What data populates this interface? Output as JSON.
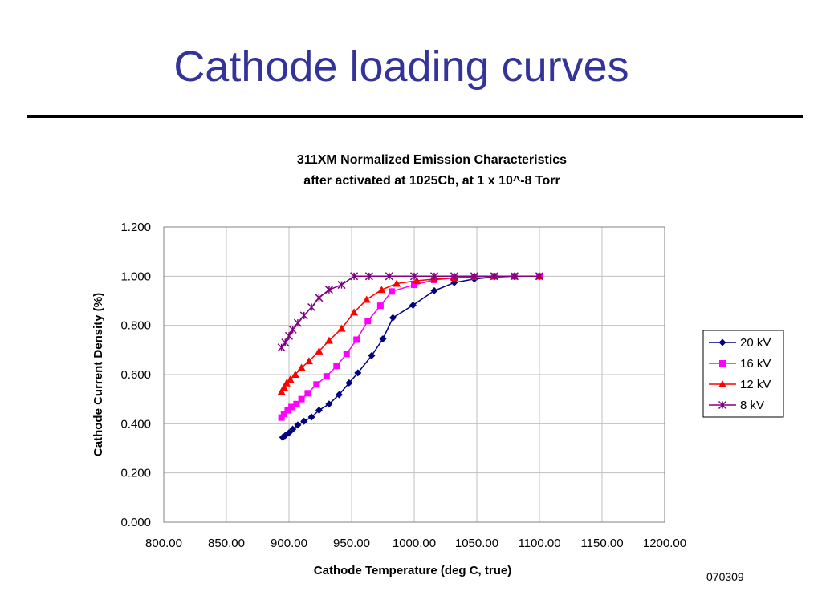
{
  "slide": {
    "title": "Cathode loading curves",
    "footer_code": "070309"
  },
  "colors": {
    "title": "#333399",
    "plot_border": "#808080",
    "grid": "#c0c0c0"
  },
  "chart_data": {
    "type": "line",
    "title": "311XM Normalized Emission Characteristics",
    "subtitle": "after activated at 1025Cb, at 1 x 10^-8 Torr",
    "xlabel": "Cathode Temperature (deg C, true)",
    "ylabel": "Cathode Current Density (%)",
    "xlim": [
      800,
      1200
    ],
    "ylim": [
      0,
      1.2
    ],
    "x_ticks": [
      "800.00",
      "850.00",
      "900.00",
      "950.00",
      "1000.00",
      "1050.00",
      "1100.00",
      "1150.00",
      "1200.00"
    ],
    "y_ticks": [
      "0.000",
      "0.200",
      "0.400",
      "0.600",
      "0.800",
      "1.000",
      "1.200"
    ],
    "grid": true,
    "legend_position": "right",
    "series": [
      {
        "name": "20 kV",
        "color": "#000080",
        "marker": "diamond",
        "x": [
          895,
          897,
          900,
          903,
          907,
          912,
          918,
          924,
          932,
          940,
          948,
          955,
          966,
          975,
          983,
          999,
          1016,
          1032,
          1048,
          1064,
          1080,
          1100
        ],
        "y": [
          0.345,
          0.352,
          0.363,
          0.378,
          0.395,
          0.41,
          0.427,
          0.455,
          0.48,
          0.518,
          0.566,
          0.607,
          0.677,
          0.745,
          0.831,
          0.882,
          0.941,
          0.974,
          0.989,
          0.997,
          1.0,
          1.0
        ]
      },
      {
        "name": "16 kV",
        "color": "#ff00ff",
        "marker": "square",
        "x": [
          894,
          896,
          899,
          902,
          906,
          910,
          915,
          922,
          930,
          938,
          946,
          954,
          963,
          973,
          982,
          1000,
          1016,
          1032,
          1048,
          1064,
          1080,
          1100
        ],
        "y": [
          0.425,
          0.44,
          0.455,
          0.468,
          0.48,
          0.5,
          0.524,
          0.56,
          0.593,
          0.635,
          0.684,
          0.742,
          0.818,
          0.88,
          0.938,
          0.965,
          0.985,
          0.993,
          0.998,
          1.0,
          1.0,
          1.0
        ]
      },
      {
        "name": "12 kV",
        "color": "#ff0000",
        "marker": "triangle",
        "x": [
          894,
          896,
          898,
          901,
          905,
          910,
          916,
          924,
          932,
          942,
          952,
          962,
          974,
          986,
          1002,
          1016,
          1032,
          1048,
          1064,
          1080,
          1100
        ],
        "y": [
          0.53,
          0.548,
          0.565,
          0.58,
          0.6,
          0.628,
          0.655,
          0.695,
          0.738,
          0.787,
          0.853,
          0.905,
          0.945,
          0.97,
          0.982,
          0.988,
          0.994,
          0.998,
          1.0,
          1.0,
          1.0
        ]
      },
      {
        "name": "8 kV",
        "color": "#800080",
        "marker": "star",
        "x": [
          894,
          897,
          900,
          903,
          907,
          912,
          918,
          924,
          932,
          942,
          952,
          964,
          980,
          1000,
          1016,
          1032,
          1048,
          1064,
          1080,
          1100
        ],
        "y": [
          0.71,
          0.73,
          0.757,
          0.783,
          0.81,
          0.84,
          0.874,
          0.912,
          0.945,
          0.965,
          1.0,
          1.0,
          1.0,
          1.0,
          1.0,
          1.0,
          1.0,
          1.0,
          1.0,
          1.0
        ]
      }
    ]
  }
}
